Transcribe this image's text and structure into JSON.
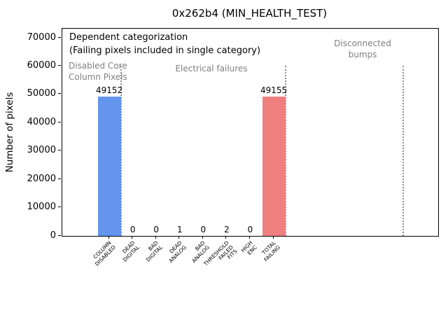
{
  "chart_data": {
    "type": "bar",
    "title": "0x262b4 (MIN_HEALTH_TEST)",
    "ylabel": "Number of pixels",
    "xlabel": "",
    "categories": [
      "COLUMN\nDISABLED",
      "DEAD\nDIGITAL",
      "BAD\nDIGITAL",
      "DEAD\nANALOG",
      "BAD\nANALOG",
      "THRESHOLD\nFAILED\nFITS",
      "HIGH\nENC",
      "TOTAL\nFAILING"
    ],
    "values": [
      49152,
      0,
      0,
      1,
      0,
      2,
      0,
      49155
    ],
    "bar_colors": [
      "#6495ed",
      "#6495ed",
      "#6495ed",
      "#6495ed",
      "#6495ed",
      "#6495ed",
      "#6495ed",
      "#f08080"
    ],
    "ylim": [
      0,
      70000
    ],
    "xlim": [
      -2,
      14
    ],
    "yticks": [
      0,
      10000,
      20000,
      30000,
      40000,
      50000,
      60000,
      70000
    ],
    "grid": false,
    "legend": null,
    "separators": {
      "positions": [
        0.5,
        7.5,
        12.5
      ],
      "y_top_value": 60000,
      "color": "#8c8c8c",
      "style": "dotted"
    },
    "annotations": {
      "dependent": "Dependent categorization",
      "failing_note": "(Failing pixels included in single category)",
      "section1": "Disabled Core\nColumn Pixels",
      "section2": "Electrical failures",
      "section3": "Disconnected\nbumps"
    }
  }
}
